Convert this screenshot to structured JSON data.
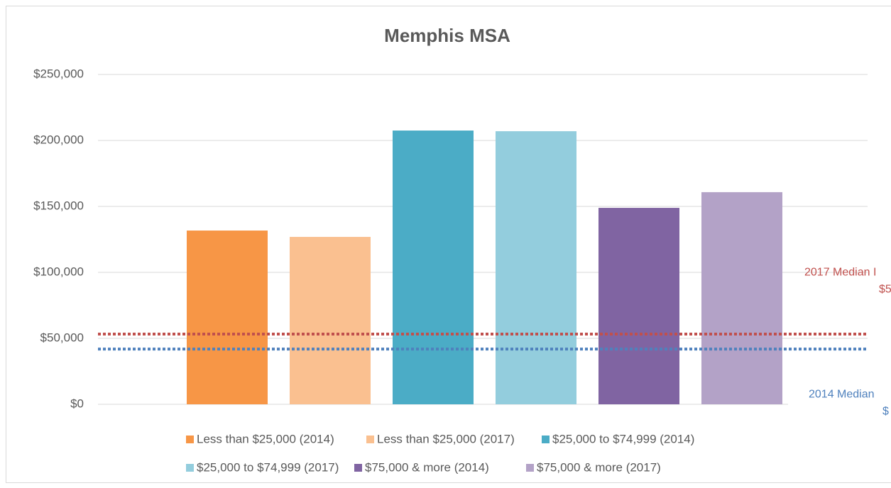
{
  "chart_data": {
    "type": "bar",
    "title": "Memphis MSA",
    "categories": [
      null
    ],
    "series": [
      {
        "name": "Less than $25,000 (2014)",
        "color": "#f79646",
        "values": [
          131700
        ]
      },
      {
        "name": "Less than $25,000 (2017)",
        "color": "#fac090",
        "values": [
          126900
        ]
      },
      {
        "name": "$25,000 to $74,999 (2014)",
        "color": "#4bacc6",
        "values": [
          207500
        ]
      },
      {
        "name": "$25,000 to $74,999 (2017)",
        "color": "#93cddd",
        "values": [
          207000
        ]
      },
      {
        "name": "$75,000 & more (2014)",
        "color": "#8064a2",
        "values": [
          148900
        ]
      },
      {
        "name": "$75,000 & more (2017)",
        "color": "#b3a2c7",
        "values": [
          160800
        ]
      }
    ],
    "reference_lines": [
      {
        "value": 53200,
        "color": "#c0504d",
        "labels": [
          "2017 Median I",
          "$5"
        ]
      },
      {
        "value": 41900,
        "color": "#4f81bd",
        "labels": [
          "2014 Median",
          "$"
        ]
      }
    ],
    "ylim": [
      0,
      250000
    ],
    "yticks": [
      {
        "value": 0,
        "label": "$0"
      },
      {
        "value": 50000,
        "label": "$50,000"
      },
      {
        "value": 100000,
        "label": "$100,000"
      },
      {
        "value": 150000,
        "label": "$150,000"
      },
      {
        "value": 200000,
        "label": "$200,000"
      },
      {
        "value": 250000,
        "label": "$250,000"
      }
    ],
    "grid": true,
    "legend": "bottom"
  }
}
